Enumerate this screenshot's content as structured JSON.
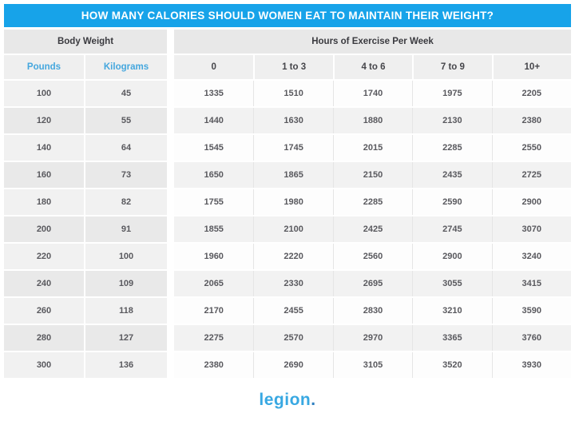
{
  "title": "HOW MANY CALORIES SHOULD WOMEN EAT TO MAINTAIN THEIR WEIGHT?",
  "header_groups": {
    "body_weight": "Body Weight",
    "exercise": "Hours of Exercise Per Week"
  },
  "columns": {
    "pounds": "Pounds",
    "kilograms": "Kilograms",
    "exercise_levels": [
      "0",
      "1 to 3",
      "4 to 6",
      "7 to 9",
      "10+"
    ]
  },
  "logo": {
    "text": "legion",
    "dot": "."
  },
  "colors": {
    "header_bar": "#17a3e9",
    "accent_blue_text": "#45a7de",
    "logo_blue": "#38a8e2",
    "row_gray": "#f2f2f2",
    "weight_gray": "#e9e9e9"
  },
  "chart_data": {
    "type": "table",
    "title": "HOW MANY CALORIES SHOULD WOMEN EAT TO MAINTAIN THEIR WEIGHT?",
    "column_groups": [
      "Body Weight",
      "Hours of Exercise Per Week"
    ],
    "columns": [
      "Pounds",
      "Kilograms",
      "0",
      "1 to 3",
      "4 to 6",
      "7 to 9",
      "10+"
    ],
    "rows": [
      {
        "pounds": "100",
        "kilograms": "45",
        "calories": [
          "1335",
          "1510",
          "1740",
          "1975",
          "2205"
        ]
      },
      {
        "pounds": "120",
        "kilograms": "55",
        "calories": [
          "1440",
          "1630",
          "1880",
          "2130",
          "2380"
        ]
      },
      {
        "pounds": "140",
        "kilograms": "64",
        "calories": [
          "1545",
          "1745",
          "2015",
          "2285",
          "2550"
        ]
      },
      {
        "pounds": "160",
        "kilograms": "73",
        "calories": [
          "1650",
          "1865",
          "2150",
          "2435",
          "2725"
        ]
      },
      {
        "pounds": "180",
        "kilograms": "82",
        "calories": [
          "1755",
          "1980",
          "2285",
          "2590",
          "2900"
        ]
      },
      {
        "pounds": "200",
        "kilograms": "91",
        "calories": [
          "1855",
          "2100",
          "2425",
          "2745",
          "3070"
        ]
      },
      {
        "pounds": "220",
        "kilograms": "100",
        "calories": [
          "1960",
          "2220",
          "2560",
          "2900",
          "3240"
        ]
      },
      {
        "pounds": "240",
        "kilograms": "109",
        "calories": [
          "2065",
          "2330",
          "2695",
          "3055",
          "3415"
        ]
      },
      {
        "pounds": "260",
        "kilograms": "118",
        "calories": [
          "2170",
          "2455",
          "2830",
          "3210",
          "3590"
        ]
      },
      {
        "pounds": "280",
        "kilograms": "127",
        "calories": [
          "2275",
          "2570",
          "2970",
          "3365",
          "3760"
        ]
      },
      {
        "pounds": "300",
        "kilograms": "136",
        "calories": [
          "2380",
          "2690",
          "3105",
          "3520",
          "3930"
        ]
      }
    ]
  }
}
